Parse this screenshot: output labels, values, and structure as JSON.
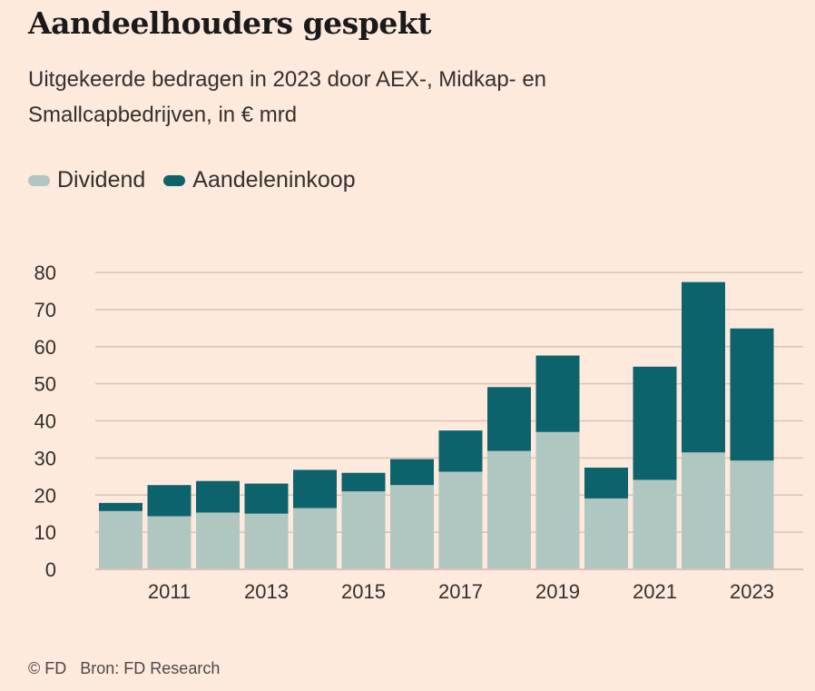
{
  "title": "Aandeelhouders gespekt",
  "subtitle": "Uitgekeerde bedragen in 2023 door AEX-, Midkap- en Smallcapbedrijven, in € mrd",
  "footer": {
    "copyright": "© FD",
    "source": "Bron: FD Research"
  },
  "chart_data": {
    "type": "bar",
    "stacked": true,
    "categories": [
      "2010",
      "2011",
      "2012",
      "2013",
      "2014",
      "2015",
      "2016",
      "2017",
      "2018",
      "2019",
      "2020",
      "2021",
      "2022",
      "2023"
    ],
    "x_tick_labels": [
      "2011",
      "2013",
      "2015",
      "2017",
      "2019",
      "2021",
      "2023"
    ],
    "series": [
      {
        "name": "Dividend",
        "color": "#b0c6c0",
        "values": [
          15.7,
          14.3,
          15.3,
          15.0,
          16.5,
          21.0,
          22.7,
          26.3,
          31.9,
          37.0,
          19.1,
          24.1,
          31.5,
          29.3
        ]
      },
      {
        "name": "Aandeleninkoop",
        "color": "#0d636b",
        "values": [
          2.2,
          8.4,
          8.5,
          8.1,
          10.3,
          5.0,
          7.0,
          11.1,
          17.2,
          20.6,
          8.3,
          30.5,
          45.9,
          35.6
        ]
      }
    ],
    "ylim": [
      0,
      80
    ],
    "y_ticks": [
      "0",
      "10",
      "20",
      "30",
      "40",
      "50",
      "60",
      "70",
      "80"
    ],
    "grid": true,
    "legend": "top-left"
  }
}
